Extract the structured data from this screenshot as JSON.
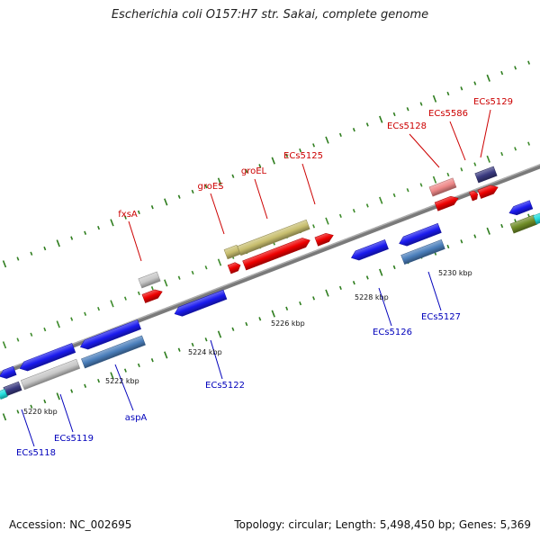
{
  "title": "Escherichia coli O157:H7 str. Sakai, complete genome",
  "footer": {
    "accession": "Accession: NC_002695",
    "topology": "Topology: circular; Length: 5,498,450 bp; Genes: 5,369"
  },
  "colors": {
    "backbone": "#7a7a7a",
    "tick_major": "#2e7d1e",
    "tick_minor": "#3c8a2a",
    "forward_label": "#cc0000",
    "reverse_label": "#0000bb",
    "red": "#ee0000",
    "blue": "#1a1aee",
    "steel": "#4a7ebb",
    "khaki": "#c8be6e",
    "gray": "#c8c8c8",
    "pink": "#ee8888",
    "navy": "#3a3a80",
    "olive": "#6f8c25",
    "cyan": "#22dddd"
  },
  "forward_labels": [
    "fxsA",
    "groES",
    "groEL",
    "ECs5125",
    "ECs5128",
    "ECs5586",
    "ECs5129"
  ],
  "reverse_labels": [
    "ECs5118",
    "ECs5119",
    "aspA",
    "ECs5122",
    "ECs5126",
    "ECs5127"
  ],
  "tick_labels": [
    "5220 kbp",
    "5222 kbp",
    "5224 kbp",
    "5226 kbp",
    "5228 kbp",
    "5230 kbp"
  ]
}
